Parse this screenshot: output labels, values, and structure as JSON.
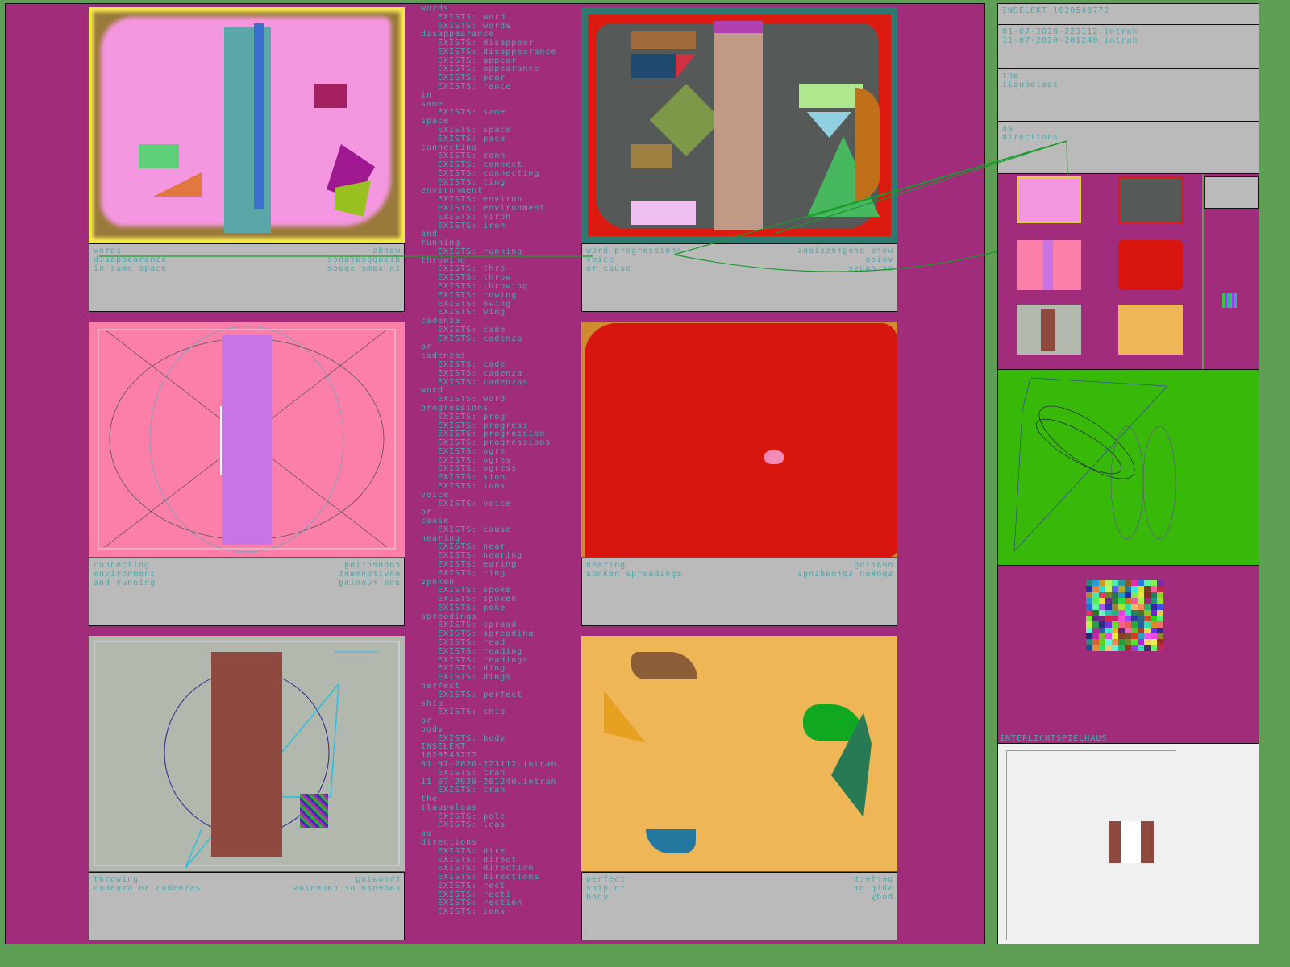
{
  "colors": {
    "background": "#5f9f55",
    "panel": "#a02c7b",
    "text": "#4aa8ae",
    "caption_bg": "#bababa",
    "connector": "#1a9a2a"
  },
  "wordlist": [
    {
      "word": "words",
      "exists": [
        "word",
        "words"
      ]
    },
    {
      "word": "disappearance",
      "exists": [
        "disappear",
        "disappearance",
        "appear",
        "appearance",
        "pear",
        "rance"
      ]
    },
    {
      "word": "in",
      "exists": []
    },
    {
      "word": "same",
      "exists": [
        "same"
      ]
    },
    {
      "word": "space",
      "exists": [
        "space",
        "pace"
      ]
    },
    {
      "word": "connecting",
      "exists": [
        "conn",
        "connect",
        "connecting",
        "ting"
      ]
    },
    {
      "word": "environment",
      "exists": [
        "environ",
        "environment",
        "viron",
        "iron"
      ]
    },
    {
      "word": "and",
      "exists": []
    },
    {
      "word": "running",
      "exists": [
        "running"
      ]
    },
    {
      "word": "throwing",
      "exists": [
        "thro",
        "throw",
        "throwing",
        "rowing",
        "owing",
        "wing"
      ]
    },
    {
      "word": "cadenza",
      "exists": [
        "cade",
        "cadenza"
      ]
    },
    {
      "word": "or",
      "exists": []
    },
    {
      "word": "cadenzas",
      "exists": [
        "cade",
        "cadenza",
        "cadenzas"
      ]
    },
    {
      "word": "word",
      "exists": [
        "word"
      ]
    },
    {
      "word": "progressions",
      "exists": [
        "prog",
        "progress",
        "progression",
        "progressions",
        "ogre",
        "ogres",
        "ogress",
        "sion",
        "ions"
      ]
    },
    {
      "word": "voice",
      "exists": [
        "voice"
      ]
    },
    {
      "word": "or",
      "exists": []
    },
    {
      "word": "cause",
      "exists": [
        "cause"
      ]
    },
    {
      "word": "nearing",
      "exists": [
        "near",
        "nearing",
        "earing",
        "ring"
      ]
    },
    {
      "word": "spoken",
      "exists": [
        "spoke",
        "spoken",
        "poke"
      ]
    },
    {
      "word": "spreadings",
      "exists": [
        "spread",
        "spreading",
        "read",
        "reading",
        "readings",
        "ding",
        "dings"
      ]
    },
    {
      "word": "perfect",
      "exists": [
        "perfect"
      ]
    },
    {
      "word": "ship",
      "exists": [
        "ship"
      ]
    },
    {
      "word": "or",
      "exists": []
    },
    {
      "word": "body",
      "exists": [
        "body"
      ]
    },
    {
      "word": "INSELEKT",
      "exists": []
    },
    {
      "word": "1620548772",
      "exists": []
    },
    {
      "word": "01-07-2020-223112.intrah",
      "exists": [
        "trah"
      ]
    },
    {
      "word": "11-07-2020-201240.intrah",
      "exists": [
        "trah"
      ]
    },
    {
      "word": "the",
      "exists": []
    },
    {
      "word": "ilaupoleas",
      "exists": [
        "pole",
        "leas"
      ]
    },
    {
      "word": "as",
      "exists": []
    },
    {
      "word": "directions",
      "exists": [
        "dire",
        "direct",
        "direction",
        "directions",
        "rect",
        "recti",
        "rection",
        "ions"
      ]
    }
  ],
  "exists_label": "EXISTS: ",
  "captions": [
    {
      "lines": [
        "words",
        "disappearance",
        "in same space"
      ]
    },
    {
      "lines": [
        "word progressions",
        "voice",
        "or cause"
      ]
    },
    {
      "lines": [
        "connecting",
        "environment",
        "and running"
      ]
    },
    {
      "lines": [
        "nearing",
        "spoken spreadings"
      ]
    },
    {
      "lines": [
        "throwing",
        "cadenza or cadenzas"
      ]
    },
    {
      "lines": [
        "perfect",
        "ship or",
        "body"
      ]
    }
  ],
  "right_panel": {
    "title": "INSELEKT 1620548772",
    "files": [
      "01-07-2020-223112.intrah",
      "11-07-2020-201240.intrah"
    ],
    "block2": [
      "the",
      "ilaupoleas"
    ],
    "block3": [
      "as",
      "directions"
    ],
    "footer_label": "INTERLICHTSPIELHAUS"
  }
}
